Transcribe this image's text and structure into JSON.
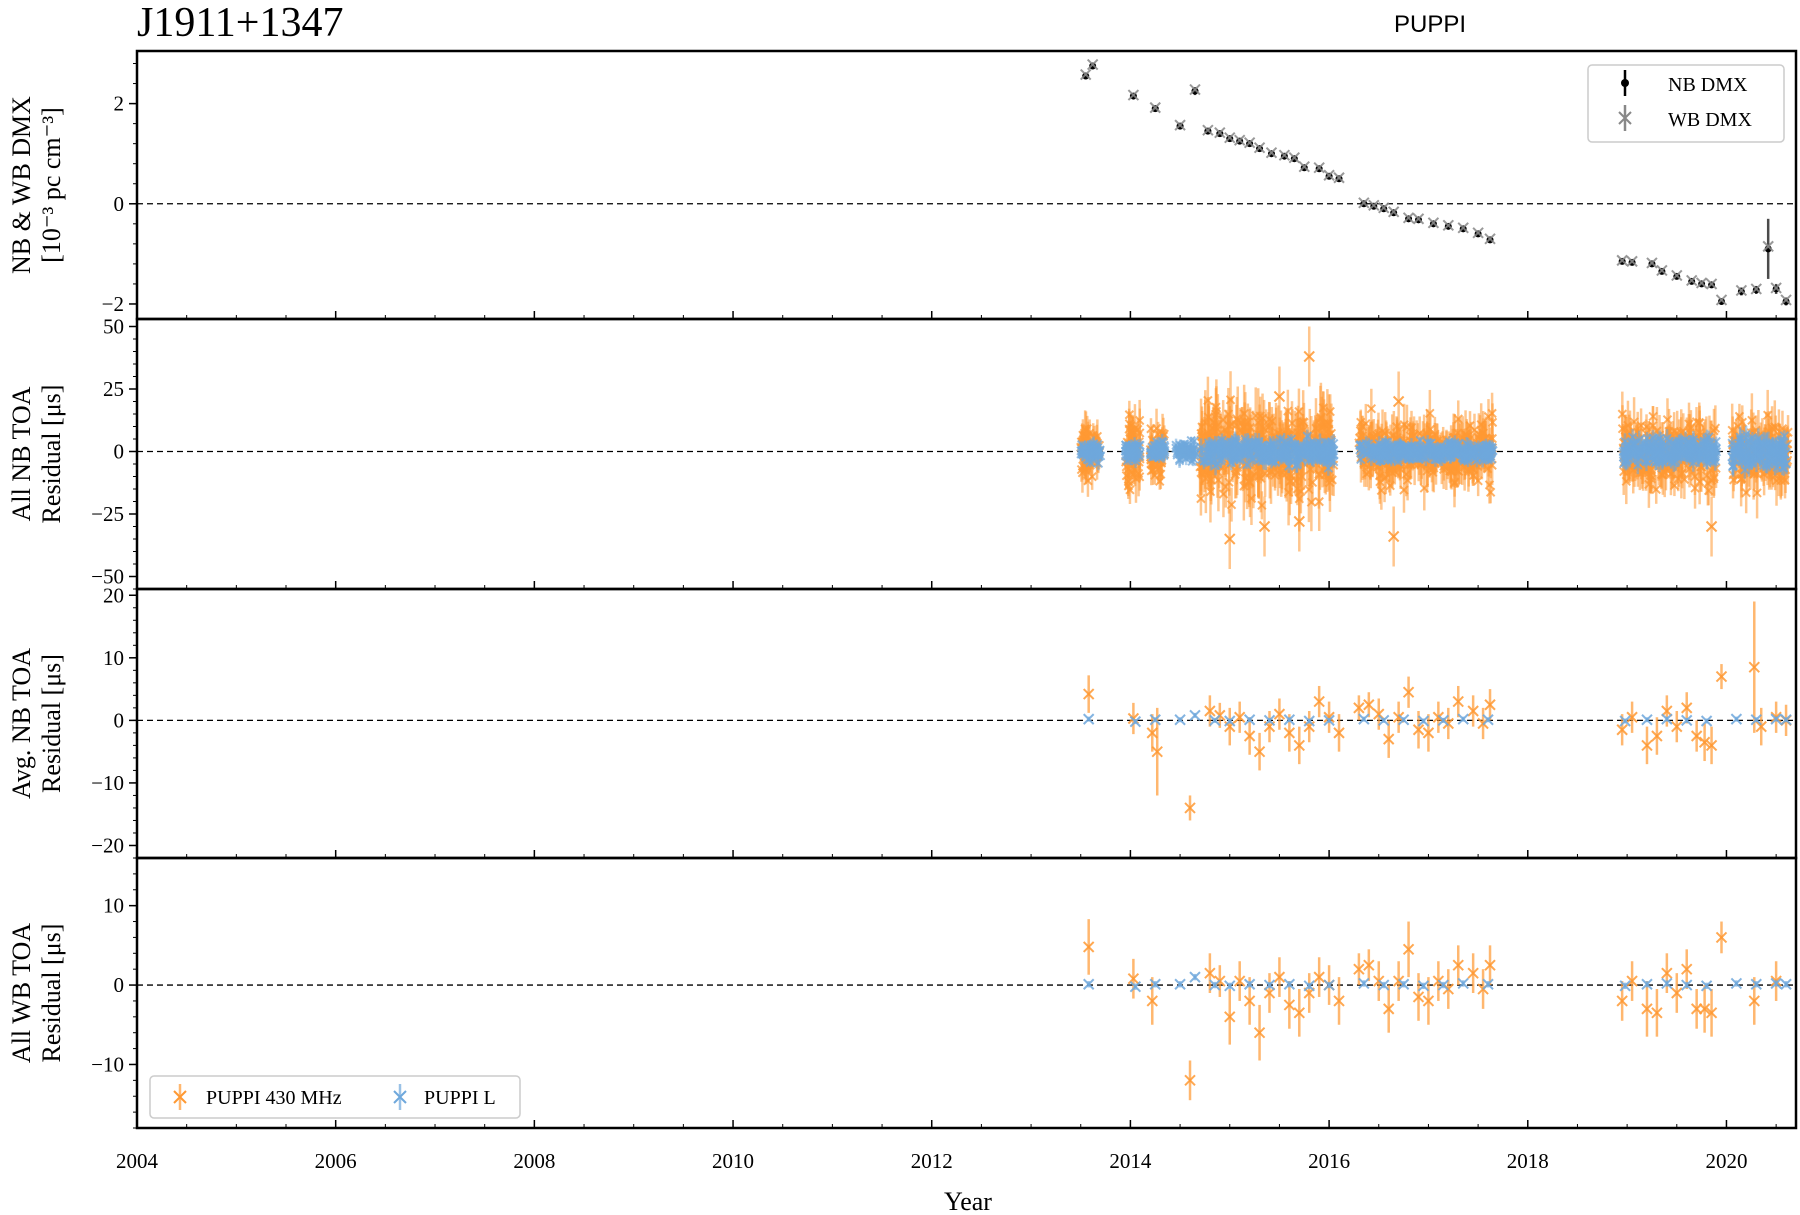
{
  "figure": {
    "title": "J1911+1347",
    "subtitle": "PUPPI",
    "xlabel": "Year"
  },
  "colors": {
    "puppi_430": "#ff9933",
    "puppi_l": "#6fa8dc",
    "nb_dmx": "#000000",
    "wb_dmx": "#888888"
  },
  "chart_data": [
    {
      "type": "scatter",
      "panel": "NB & WB DMX",
      "ylabel_lines": [
        "NB & WB DMX",
        "[10⁻³ pc cm⁻³]"
      ],
      "xlim": [
        2004,
        2020.7
      ],
      "ylim": [
        -2.3,
        3.05
      ],
      "yticks": [
        -2,
        0,
        2
      ],
      "ytick_labels": [
        "−2",
        "0",
        "2"
      ],
      "reference_line": 0,
      "legend": {
        "placement": "top-right",
        "entries": [
          "NB DMX",
          "WB DMX"
        ]
      },
      "series": [
        {
          "name": "NB DMX",
          "color": "#000000",
          "x": [
            2013.55,
            2013.62,
            2014.03,
            2014.25,
            2014.5,
            2014.65,
            2014.78,
            2014.9,
            2015.0,
            2015.1,
            2015.2,
            2015.3,
            2015.42,
            2015.55,
            2015.65,
            2015.75,
            2015.9,
            2016.0,
            2016.1,
            2016.35,
            2016.45,
            2016.55,
            2016.65,
            2016.8,
            2016.9,
            2017.05,
            2017.2,
            2017.35,
            2017.5,
            2017.62,
            2018.95,
            2019.05,
            2019.25,
            2019.35,
            2019.5,
            2019.65,
            2019.75,
            2019.85,
            2019.95,
            2020.15,
            2020.3,
            2020.42,
            2020.5,
            2020.6
          ],
          "y": [
            2.55,
            2.75,
            2.15,
            1.9,
            1.55,
            2.25,
            1.45,
            1.4,
            1.3,
            1.25,
            1.2,
            1.1,
            1.0,
            0.95,
            0.9,
            0.72,
            0.7,
            0.55,
            0.5,
            0.0,
            -0.05,
            -0.1,
            -0.18,
            -0.3,
            -0.32,
            -0.4,
            -0.45,
            -0.5,
            -0.6,
            -0.72,
            -1.15,
            -1.17,
            -1.2,
            -1.35,
            -1.45,
            -1.55,
            -1.6,
            -1.62,
            -1.95,
            -1.75,
            -1.72,
            -0.9,
            -1.7,
            -1.95
          ],
          "yerr": [
            0.06,
            0.06,
            0.05,
            0.05,
            0.05,
            0.08,
            0.05,
            0.05,
            0.04,
            0.04,
            0.04,
            0.04,
            0.04,
            0.04,
            0.04,
            0.04,
            0.04,
            0.04,
            0.04,
            0.04,
            0.04,
            0.04,
            0.04,
            0.04,
            0.04,
            0.04,
            0.04,
            0.04,
            0.04,
            0.04,
            0.05,
            0.05,
            0.05,
            0.05,
            0.05,
            0.05,
            0.05,
            0.05,
            0.06,
            0.08,
            0.08,
            0.6,
            0.1,
            0.08
          ]
        },
        {
          "name": "WB DMX",
          "color": "#888888",
          "x": [
            2013.55,
            2013.62,
            2014.03,
            2014.25,
            2014.5,
            2014.65,
            2014.78,
            2014.9,
            2015.0,
            2015.1,
            2015.2,
            2015.3,
            2015.42,
            2015.55,
            2015.65,
            2015.75,
            2015.9,
            2016.0,
            2016.1,
            2016.35,
            2016.45,
            2016.55,
            2016.65,
            2016.8,
            2016.9,
            2017.05,
            2017.2,
            2017.35,
            2017.5,
            2017.62,
            2018.95,
            2019.05,
            2019.25,
            2019.35,
            2019.5,
            2019.65,
            2019.75,
            2019.85,
            2019.95,
            2020.15,
            2020.3,
            2020.42,
            2020.5,
            2020.6
          ],
          "y": [
            2.58,
            2.78,
            2.17,
            1.92,
            1.57,
            2.28,
            1.47,
            1.42,
            1.32,
            1.27,
            1.22,
            1.12,
            1.02,
            0.97,
            0.92,
            0.74,
            0.72,
            0.57,
            0.52,
            0.02,
            -0.03,
            -0.08,
            -0.16,
            -0.28,
            -0.3,
            -0.38,
            -0.43,
            -0.48,
            -0.58,
            -0.7,
            -1.13,
            -1.15,
            -1.18,
            -1.33,
            -1.43,
            -1.53,
            -1.58,
            -1.6,
            -1.92,
            -1.73,
            -1.7,
            -0.85,
            -1.68,
            -1.92
          ]
        }
      ]
    },
    {
      "type": "scatter",
      "panel": "All NB TOA Residual",
      "ylabel_lines": [
        "All NB TOA",
        "Residual [μs]"
      ],
      "ylim": [
        -55,
        53
      ],
      "yticks": [
        -50,
        -25,
        0,
        25,
        50
      ],
      "ytick_labels": [
        "−50",
        "−25",
        "0",
        "25",
        "50"
      ],
      "reference_line": 0,
      "note": "dense clusters of TOAs",
      "series": [
        {
          "name": "PUPPI 430 MHz",
          "color": "#ff9933",
          "clusters": [
            [
              2013.5,
              2013.7,
              8
            ],
            [
              2013.95,
              2014.1,
              10
            ],
            [
              2014.2,
              2014.35,
              8
            ],
            [
              2014.7,
              2016.05,
              14
            ],
            [
              2016.3,
              2017.65,
              10
            ],
            [
              2018.95,
              2019.9,
              10
            ],
            [
              2020.05,
              2020.62,
              11
            ]
          ],
          "outliers": [
            [
              2015.0,
              -35
            ],
            [
              2015.35,
              -30
            ],
            [
              2015.8,
              38
            ],
            [
              2015.7,
              -28
            ],
            [
              2016.65,
              -34
            ],
            [
              2019.85,
              -30
            ],
            [
              2016.7,
              20
            ],
            [
              2015.5,
              22
            ]
          ]
        },
        {
          "name": "PUPPI L",
          "color": "#6fa8dc",
          "clusters": [
            [
              2013.5,
              2013.7,
              3
            ],
            [
              2013.95,
              2014.1,
              3
            ],
            [
              2014.2,
              2014.35,
              3
            ],
            [
              2014.45,
              2014.65,
              3
            ],
            [
              2014.7,
              2016.05,
              4
            ],
            [
              2016.3,
              2017.65,
              3
            ],
            [
              2018.95,
              2019.9,
              4
            ],
            [
              2020.05,
              2020.62,
              5
            ]
          ]
        }
      ]
    },
    {
      "type": "scatter",
      "panel": "Avg. NB TOA Residual",
      "ylabel_lines": [
        "Avg. NB TOA",
        "Residual [μs]"
      ],
      "ylim": [
        -22,
        21
      ],
      "yticks": [
        -20,
        -10,
        0,
        10,
        20
      ],
      "ytick_labels": [
        "−20",
        "−10",
        "0",
        "10",
        "20"
      ],
      "reference_line": 0,
      "series": [
        {
          "name": "PUPPI 430 MHz",
          "color": "#ff9933",
          "x": [
            2013.58,
            2014.03,
            2014.22,
            2014.27,
            2014.6,
            2014.8,
            2014.9,
            2015.0,
            2015.1,
            2015.2,
            2015.3,
            2015.4,
            2015.5,
            2015.6,
            2015.7,
            2015.8,
            2015.9,
            2016.0,
            2016.1,
            2016.3,
            2016.4,
            2016.5,
            2016.6,
            2016.7,
            2016.8,
            2016.9,
            2017.0,
            2017.1,
            2017.2,
            2017.3,
            2017.45,
            2017.55,
            2017.62,
            2018.95,
            2019.05,
            2019.2,
            2019.3,
            2019.4,
            2019.5,
            2019.6,
            2019.7,
            2019.78,
            2019.85,
            2019.95,
            2020.28,
            2020.35,
            2020.5,
            2020.6
          ],
          "y": [
            4.2,
            0.3,
            -2.0,
            -5.0,
            -14.0,
            1.5,
            0.8,
            -1.0,
            0.5,
            -2.5,
            -5.0,
            -1.0,
            1.0,
            -2.0,
            -4.0,
            -1.0,
            3.0,
            0.5,
            -2.0,
            2.0,
            2.5,
            1.0,
            -3.0,
            0.5,
            4.5,
            -1.5,
            -2.0,
            0.5,
            -0.5,
            3.0,
            1.5,
            -0.5,
            2.5,
            -1.5,
            0.5,
            -4.0,
            -2.5,
            1.5,
            -1.0,
            2.0,
            -2.5,
            -3.5,
            -4.0,
            7.0,
            8.5,
            -1.0,
            0.5,
            0.0
          ],
          "yerr": [
            3.0,
            2.5,
            3.0,
            7.0,
            2.0,
            2.5,
            2.0,
            3.0,
            2.5,
            3.0,
            3.0,
            2.5,
            2.5,
            3.0,
            3.0,
            2.5,
            2.5,
            2.5,
            3.0,
            2.0,
            2.0,
            2.5,
            3.0,
            2.5,
            2.5,
            3.0,
            3.0,
            2.5,
            2.5,
            2.5,
            2.5,
            2.5,
            2.5,
            2.5,
            2.5,
            3.0,
            3.0,
            2.5,
            2.5,
            2.5,
            2.5,
            3.0,
            3.0,
            2.0,
            10.5,
            3.0,
            2.5,
            2.5
          ]
        },
        {
          "name": "PUPPI L",
          "color": "#6fa8dc",
          "x": [
            2013.58,
            2014.05,
            2014.25,
            2014.5,
            2014.65,
            2014.85,
            2015.0,
            2015.2,
            2015.4,
            2015.6,
            2015.8,
            2016.0,
            2016.35,
            2016.55,
            2016.75,
            2016.95,
            2017.15,
            2017.35,
            2017.6,
            2018.98,
            2019.2,
            2019.4,
            2019.6,
            2019.8,
            2020.1,
            2020.3,
            2020.5,
            2020.6
          ],
          "y": [
            0.2,
            -0.2,
            0.1,
            0.1,
            0.8,
            0.0,
            -0.1,
            0.1,
            0.0,
            0.1,
            -0.1,
            0.0,
            0.2,
            0.0,
            0.1,
            -0.1,
            0.0,
            0.2,
            0.1,
            -0.1,
            0.1,
            0.2,
            0.0,
            -0.1,
            0.2,
            0.1,
            0.2,
            0.1
          ],
          "yerr": [
            0.4,
            0.4,
            0.4,
            0.4,
            0.4,
            0.4,
            0.4,
            0.4,
            0.4,
            0.4,
            0.4,
            0.4,
            0.4,
            0.4,
            0.4,
            0.4,
            0.4,
            0.4,
            0.4,
            0.4,
            0.4,
            0.4,
            0.4,
            0.4,
            0.4,
            0.4,
            0.4,
            0.4
          ]
        }
      ]
    },
    {
      "type": "scatter",
      "panel": "All WB TOA Residual",
      "ylabel_lines": [
        "All WB TOA",
        "Residual [μs]"
      ],
      "ylim": [
        -18,
        16
      ],
      "yticks": [
        -10,
        0,
        10
      ],
      "ytick_labels": [
        "−10",
        "0",
        "10"
      ],
      "reference_line": 0,
      "legend": {
        "placement": "bottom-left",
        "entries": [
          "PUPPI 430 MHz",
          "PUPPI L"
        ]
      },
      "series": [
        {
          "name": "PUPPI 430 MHz",
          "color": "#ff9933",
          "x": [
            2013.58,
            2014.03,
            2014.22,
            2014.6,
            2014.8,
            2014.9,
            2015.0,
            2015.1,
            2015.2,
            2015.3,
            2015.4,
            2015.5,
            2015.6,
            2015.7,
            2015.8,
            2015.9,
            2016.0,
            2016.1,
            2016.3,
            2016.4,
            2016.5,
            2016.6,
            2016.7,
            2016.8,
            2016.9,
            2017.0,
            2017.1,
            2017.2,
            2017.3,
            2017.45,
            2017.55,
            2017.62,
            2018.95,
            2019.05,
            2019.2,
            2019.3,
            2019.4,
            2019.5,
            2019.6,
            2019.7,
            2019.78,
            2019.85,
            2019.95,
            2020.28,
            2020.5
          ],
          "y": [
            4.8,
            0.8,
            -2.0,
            -12.0,
            1.5,
            0.5,
            -4.0,
            0.5,
            -2.0,
            -6.0,
            -1.0,
            1.0,
            -2.5,
            -3.5,
            -1.0,
            1.0,
            0.0,
            -2.0,
            2.0,
            2.5,
            0.5,
            -3.0,
            0.5,
            4.5,
            -1.5,
            -2.0,
            0.5,
            -0.5,
            2.5,
            1.5,
            -0.5,
            2.5,
            -2.0,
            0.5,
            -3.0,
            -3.5,
            1.5,
            -1.0,
            2.0,
            -3.0,
            -3.0,
            -3.5,
            6.0,
            -2.0,
            0.5
          ],
          "yerr": [
            3.5,
            2.5,
            3.0,
            2.5,
            2.5,
            2.0,
            3.5,
            2.5,
            3.0,
            3.5,
            2.5,
            2.5,
            3.0,
            3.0,
            2.5,
            2.5,
            2.5,
            3.0,
            2.0,
            2.0,
            2.5,
            3.0,
            2.5,
            3.5,
            3.0,
            3.0,
            2.5,
            2.5,
            2.5,
            2.5,
            2.5,
            2.5,
            2.5,
            2.5,
            3.5,
            3.0,
            2.5,
            2.5,
            2.5,
            2.5,
            3.0,
            3.0,
            2.0,
            3.0,
            2.5
          ]
        },
        {
          "name": "PUPPI L",
          "color": "#6fa8dc",
          "x": [
            2013.58,
            2014.05,
            2014.25,
            2014.5,
            2014.65,
            2014.85,
            2015.0,
            2015.2,
            2015.4,
            2015.6,
            2015.8,
            2016.0,
            2016.35,
            2016.55,
            2016.75,
            2016.95,
            2017.15,
            2017.35,
            2017.6,
            2018.98,
            2019.2,
            2019.4,
            2019.6,
            2019.8,
            2020.1,
            2020.3,
            2020.5,
            2020.6
          ],
          "y": [
            0.1,
            -0.2,
            0.1,
            0.1,
            1.0,
            0.0,
            -0.1,
            0.1,
            0.0,
            0.1,
            -0.1,
            0.0,
            0.2,
            0.0,
            0.1,
            -0.1,
            0.0,
            0.2,
            0.1,
            -0.1,
            0.1,
            0.2,
            0.0,
            -0.1,
            0.2,
            0.1,
            0.2,
            0.1
          ],
          "yerr": [
            0.4,
            0.4,
            0.4,
            0.4,
            0.4,
            0.4,
            0.4,
            0.4,
            0.4,
            0.4,
            0.4,
            0.4,
            0.4,
            0.4,
            0.4,
            0.4,
            0.4,
            0.4,
            0.4,
            0.4,
            0.4,
            0.4,
            0.4,
            0.4,
            0.4,
            0.4,
            0.4,
            0.4
          ]
        }
      ]
    }
  ],
  "xaxis": {
    "xlim": [
      2004,
      2020.7
    ],
    "ticks": [
      2004,
      2006,
      2008,
      2010,
      2012,
      2014,
      2016,
      2018,
      2020
    ],
    "tick_labels": [
      "2004",
      "2006",
      "2008",
      "2010",
      "2012",
      "2014",
      "2016",
      "2018",
      "2020"
    ]
  }
}
